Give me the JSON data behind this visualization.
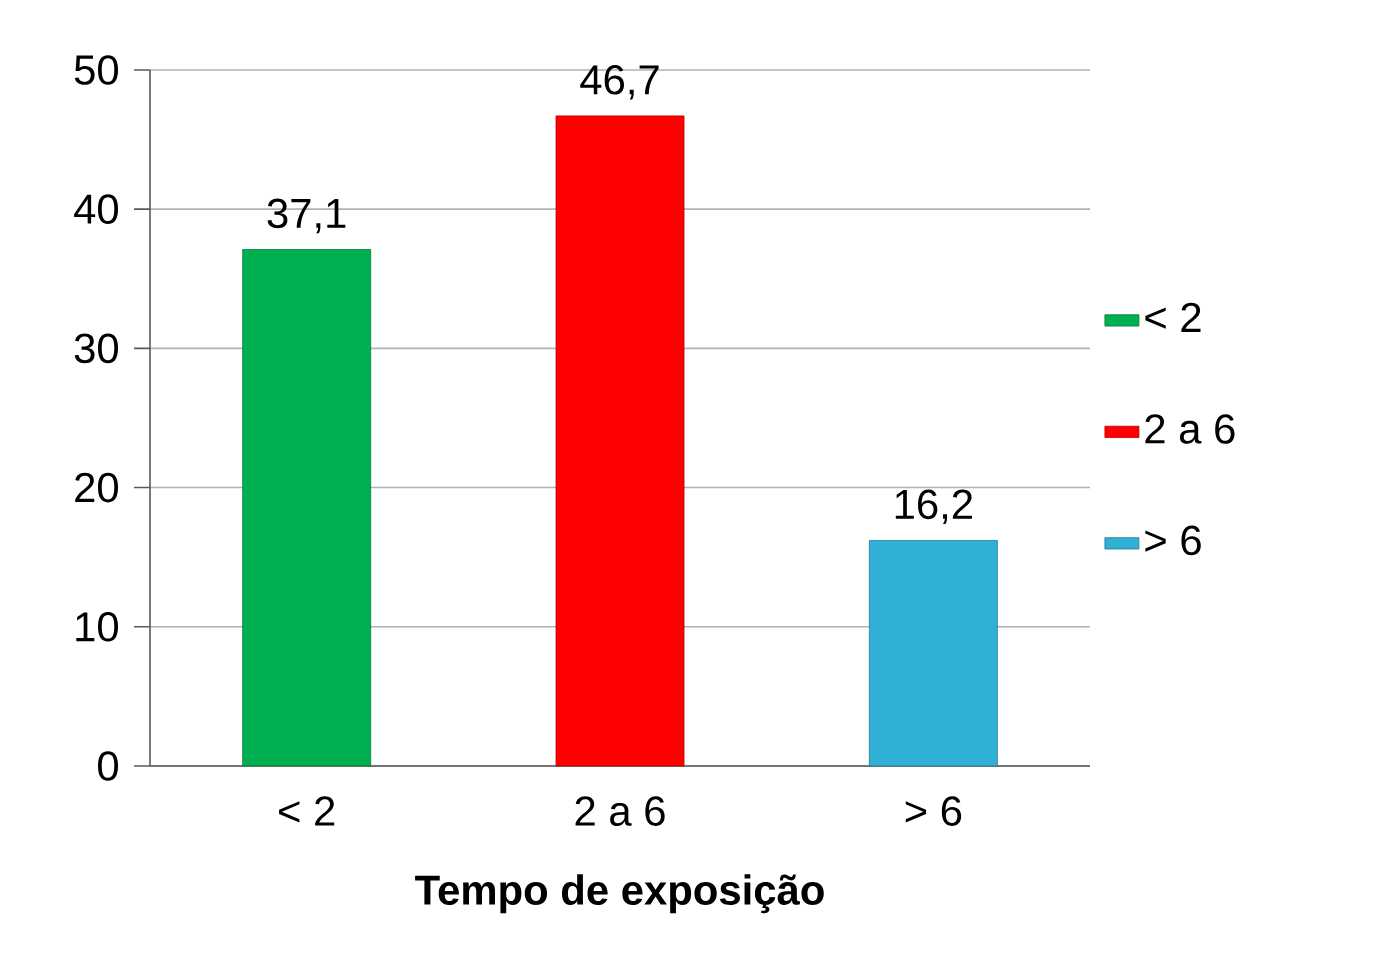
{
  "chart_data": {
    "type": "bar",
    "xlabel": "Tempo de exposição",
    "categories": [
      "< 2",
      "2 a 6",
      "> 6"
    ],
    "series": [
      {
        "name": "< 2",
        "color": "#00b050",
        "values": [
          37.1,
          null,
          null
        ],
        "value_labels": [
          "37,1",
          null,
          null
        ]
      },
      {
        "name": "2 a 6",
        "color": "#ff0000",
        "values": [
          null,
          46.7,
          null
        ],
        "value_labels": [
          null,
          "46,7",
          null
        ]
      },
      {
        "name": "> 6",
        "color": "#31b0d5",
        "values": [
          null,
          null,
          16.2
        ],
        "value_labels": [
          null,
          null,
          "16,2"
        ]
      }
    ],
    "ylim": [
      0,
      50
    ],
    "yticks": [
      0,
      10,
      20,
      30,
      40,
      50
    ],
    "grid": "y",
    "legend": "right"
  }
}
